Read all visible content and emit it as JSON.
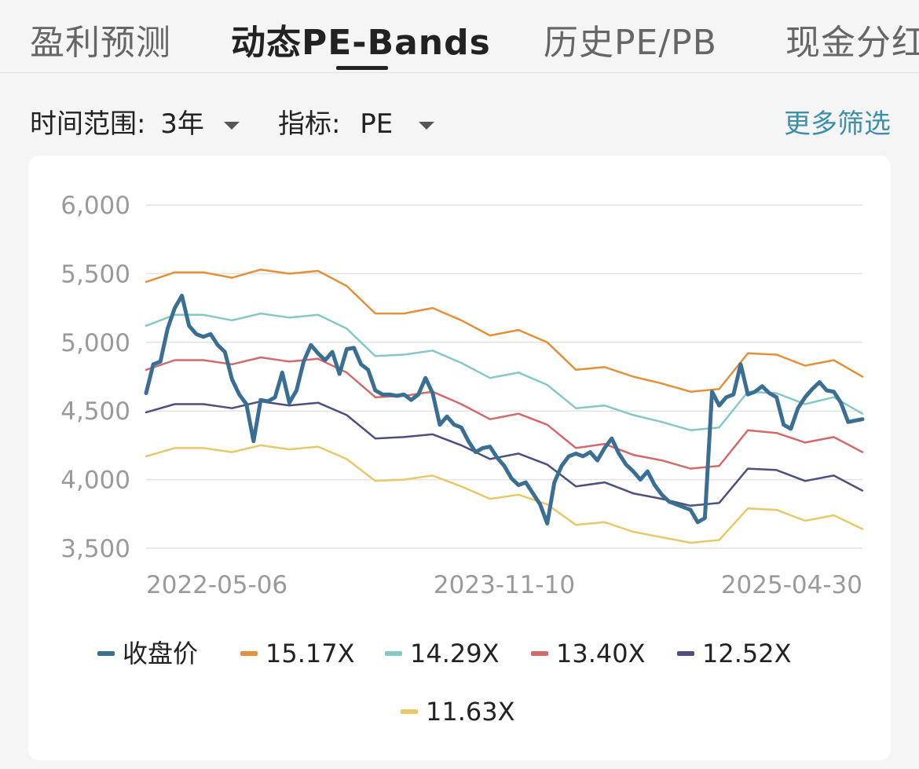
{
  "tabs": [
    {
      "label": "盈利预测",
      "active": false
    },
    {
      "label": "动态PE-Bands",
      "active": true
    },
    {
      "label": "历史PE/PB",
      "active": false
    },
    {
      "label": "现金分红",
      "active": false
    }
  ],
  "filters": {
    "time_range": {
      "label": "时间范围:",
      "value": "3年"
    },
    "indicator": {
      "label": "指标:",
      "value": "PE"
    },
    "more_label": "更多筛选"
  },
  "colors": {
    "close": "#3a6f93",
    "b1517": "#e2913b",
    "b1429": "#86c8c4",
    "b1340": "#d16a6a",
    "b1252": "#4e4f7d",
    "b1163": "#e6c96b",
    "grid": "#e3e3e3"
  },
  "chart_data": {
    "type": "line",
    "title": "",
    "xlabel": "",
    "ylabel": "",
    "ylim": [
      3500,
      6000
    ],
    "yticks": [
      "3,500",
      "4,000",
      "4,500",
      "5,000",
      "5,500",
      "6,000"
    ],
    "xticks": [
      "2022-05-06",
      "2023-11-10",
      "2025-04-30"
    ],
    "x_range": [
      0,
      100
    ],
    "grid": true,
    "legend_position": "bottom",
    "series": [
      {
        "name": "收盘价",
        "color_key": "close",
        "x": [
          0,
          1,
          2,
          3,
          4,
          5,
          6,
          7,
          8,
          9,
          10,
          11,
          12,
          13,
          14,
          15,
          16,
          17,
          18,
          19,
          20,
          21,
          22,
          23,
          24,
          25,
          26,
          27,
          28,
          29,
          30,
          31,
          32,
          33,
          34,
          35,
          36,
          37,
          38,
          39,
          40,
          41,
          42,
          43,
          44,
          45,
          46,
          47,
          48,
          49,
          50,
          51,
          52,
          53,
          54,
          55,
          56,
          57,
          58,
          59,
          60,
          61,
          62,
          63,
          64,
          65,
          66,
          67,
          68,
          69,
          70,
          71,
          72,
          73,
          74,
          75,
          76,
          77,
          78,
          79,
          80,
          81,
          82,
          83,
          84,
          85,
          86,
          87,
          88,
          89,
          90,
          91,
          92,
          93,
          94,
          95,
          96,
          97,
          98,
          99,
          100
        ],
        "values": [
          4630,
          4840,
          4860,
          5100,
          5250,
          5340,
          5120,
          5060,
          5040,
          5060,
          4980,
          4930,
          4730,
          4620,
          4550,
          4280,
          4580,
          4570,
          4600,
          4780,
          4560,
          4650,
          4860,
          4980,
          4920,
          4870,
          4930,
          4770,
          4950,
          4960,
          4840,
          4800,
          4650,
          4620,
          4620,
          4610,
          4620,
          4580,
          4620,
          4740,
          4630,
          4400,
          4460,
          4400,
          4380,
          4280,
          4200,
          4230,
          4240,
          4160,
          4100,
          4010,
          3960,
          3980,
          3900,
          3820,
          3680,
          3980,
          4100,
          4170,
          4190,
          4170,
          4200,
          4140,
          4230,
          4300,
          4190,
          4110,
          4060,
          4000,
          4060,
          3960,
          3890,
          3840,
          3820,
          3800,
          3780,
          3690,
          3720,
          4640,
          4540,
          4600,
          4620,
          4840,
          4620,
          4640,
          4680,
          4630,
          4600,
          4400,
          4370,
          4520,
          4600,
          4660,
          4710,
          4650,
          4640,
          4560,
          4420,
          4430,
          4440
        ]
      },
      {
        "name": "15.17X",
        "color_key": "b1517",
        "x": [
          0,
          4,
          8,
          12,
          16,
          20,
          24,
          28,
          32,
          36,
          40,
          44,
          48,
          52,
          56,
          60,
          64,
          68,
          72,
          76,
          80,
          84,
          88,
          92,
          96,
          100
        ],
        "values": [
          5440,
          5510,
          5510,
          5470,
          5530,
          5500,
          5520,
          5410,
          5210,
          5210,
          5250,
          5160,
          5050,
          5090,
          5000,
          4800,
          4820,
          4750,
          4700,
          4640,
          4660,
          4920,
          4910,
          4830,
          4870,
          4750
        ]
      },
      {
        "name": "14.29X",
        "color_key": "b1429",
        "x": [
          0,
          4,
          8,
          12,
          16,
          20,
          24,
          28,
          32,
          36,
          40,
          44,
          48,
          52,
          56,
          60,
          64,
          68,
          72,
          76,
          80,
          84,
          88,
          92,
          96,
          100
        ],
        "values": [
          5120,
          5200,
          5200,
          5160,
          5210,
          5180,
          5200,
          5100,
          4900,
          4910,
          4940,
          4850,
          4740,
          4780,
          4690,
          4520,
          4540,
          4470,
          4420,
          4360,
          4380,
          4640,
          4630,
          4550,
          4600,
          4480
        ]
      },
      {
        "name": "13.40X",
        "color_key": "b1340",
        "x": [
          0,
          4,
          8,
          12,
          16,
          20,
          24,
          28,
          32,
          36,
          40,
          44,
          48,
          52,
          56,
          60,
          64,
          68,
          72,
          76,
          80,
          84,
          88,
          92,
          96,
          100
        ],
        "values": [
          4800,
          4870,
          4870,
          4840,
          4890,
          4860,
          4880,
          4780,
          4600,
          4610,
          4640,
          4550,
          4440,
          4480,
          4400,
          4230,
          4260,
          4180,
          4140,
          4080,
          4100,
          4360,
          4340,
          4270,
          4310,
          4200
        ]
      },
      {
        "name": "12.52X",
        "color_key": "b1252",
        "x": [
          0,
          4,
          8,
          12,
          16,
          20,
          24,
          28,
          32,
          36,
          40,
          44,
          48,
          52,
          56,
          60,
          64,
          68,
          72,
          76,
          80,
          84,
          88,
          92,
          96,
          100
        ],
        "values": [
          4490,
          4550,
          4550,
          4520,
          4570,
          4540,
          4560,
          4470,
          4300,
          4310,
          4330,
          4250,
          4150,
          4190,
          4110,
          3950,
          3980,
          3900,
          3860,
          3810,
          3830,
          4080,
          4070,
          3990,
          4030,
          3920
        ]
      },
      {
        "name": "11.63X",
        "color_key": "b1163",
        "x": [
          0,
          4,
          8,
          12,
          16,
          20,
          24,
          28,
          32,
          36,
          40,
          44,
          48,
          52,
          56,
          60,
          64,
          68,
          72,
          76,
          80,
          84,
          88,
          92,
          96,
          100
        ],
        "values": [
          4170,
          4230,
          4230,
          4200,
          4250,
          4220,
          4240,
          4150,
          3990,
          4000,
          4030,
          3950,
          3860,
          3890,
          3820,
          3670,
          3690,
          3620,
          3580,
          3540,
          3560,
          3790,
          3780,
          3700,
          3740,
          3640
        ]
      }
    ]
  }
}
